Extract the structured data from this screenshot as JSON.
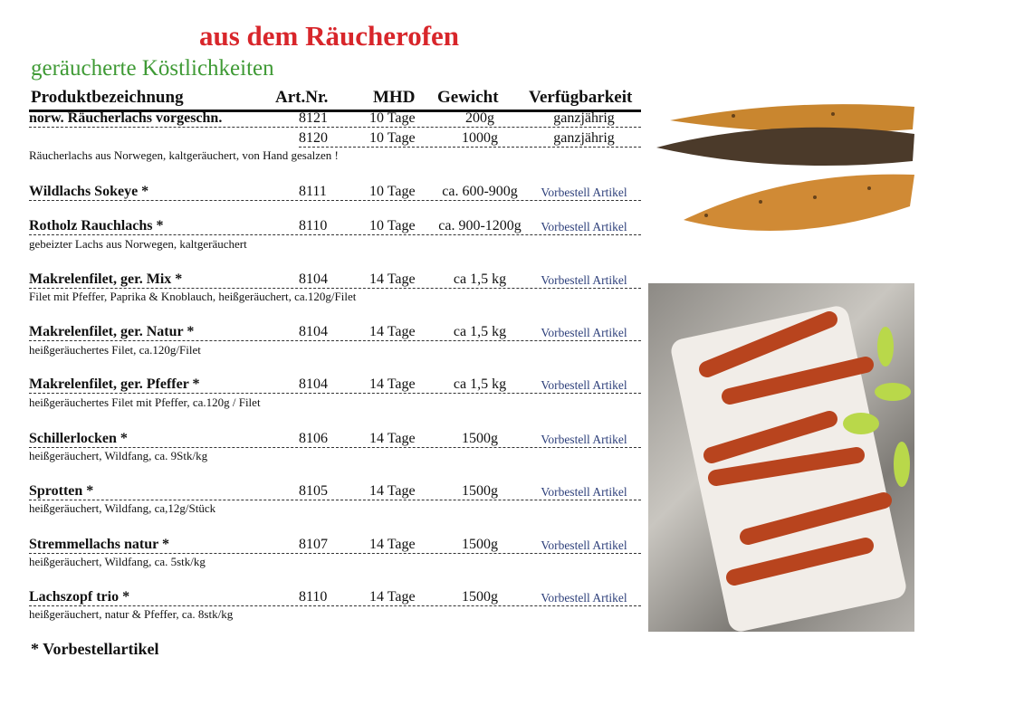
{
  "title": "aus dem Räucherofen",
  "subtitle": "geräucherte Köstlichkeiten",
  "headers": {
    "name": "Produktbezeichnung",
    "art": "Art.Nr.",
    "mhd": "MHD",
    "gewicht": "Gewicht",
    "verfuegbarkeit": "Verfügbarkeit"
  },
  "rows": [
    {
      "name": "norw. Räucherlachs vorgeschn.",
      "art": "8121",
      "mhd": "10 Tage",
      "gewicht": "200g",
      "ver": "ganzjährig"
    },
    {
      "name": "",
      "art": "8120",
      "mhd": "10 Tage",
      "gewicht": "1000g",
      "ver": "ganzjährig",
      "desc": "Räucherlachs aus Norwegen, kaltgeräuchert, von Hand gesalzen !"
    },
    {
      "name": "Wildlachs Sokeye  *",
      "art": "8111",
      "mhd": "10 Tage",
      "gewicht": "ca. 600-900g",
      "ver": "Vorbestell Artikel"
    },
    {
      "name": "Rotholz Rauchlachs  *",
      "art": "8110",
      "mhd": "10 Tage",
      "gewicht": "ca. 900-1200g",
      "ver": "Vorbestell Artikel",
      "desc": "gebeizter Lachs aus Norwegen, kaltgeräuchert"
    },
    {
      "name": "Makrelenfilet, ger. Mix  *",
      "art": "8104",
      "mhd": "14 Tage",
      "gewicht": "ca 1,5 kg",
      "ver": "Vorbestell Artikel",
      "desc": "Filet mit Pfeffer, Paprika & Knoblauch, heißgeräuchert, ca.120g/Filet"
    },
    {
      "name": "Makrelenfilet, ger. Natur   *",
      "art": "8104",
      "mhd": "14 Tage",
      "gewicht": "ca 1,5 kg",
      "ver": "Vorbestell Artikel",
      "desc": "heißgeräuchertes Filet, ca.120g/Filet"
    },
    {
      "name": "Makrelenfilet, ger. Pfeffer  *",
      "art": "8104",
      "mhd": "14 Tage",
      "gewicht": "ca 1,5 kg",
      "ver": "Vorbestell Artikel",
      "desc": "heißgeräuchertes Filet mit Pfeffer, ca.120g / Filet"
    },
    {
      "name": "Schillerlocken  *",
      "art": "8106",
      "mhd": "14 Tage",
      "gewicht": "1500g",
      "ver": "Vorbestell Artikel",
      "desc": "heißgeräuchert, Wildfang, ca. 9Stk/kg"
    },
    {
      "name": "Sprotten *",
      "art": "8105",
      "mhd": "14 Tage",
      "gewicht": "1500g",
      "ver": "Vorbestell Artikel",
      "desc": "heißgeräuchert, Wildfang, ca,12g/Stück"
    },
    {
      "name": "Stremmellachs natur  *",
      "art": "8107",
      "mhd": "14 Tage",
      "gewicht": "1500g",
      "ver": "Vorbestell Artikel",
      "desc": "heißgeräuchert, Wildfang, ca. 5stk/kg"
    },
    {
      "name": "Lachszopf trio  *",
      "art": "8110",
      "mhd": "14 Tage",
      "gewicht": "1500g",
      "ver": "Vorbestell Artikel",
      "desc": "heißgeräuchert, natur & Pfeffer, ca. 8stk/kg"
    }
  ],
  "footer": "* Vorbestellartikel",
  "colors": {
    "title": "#d8262b",
    "subtitle": "#3f9a35",
    "vorbestell": "#2d3f7a"
  }
}
